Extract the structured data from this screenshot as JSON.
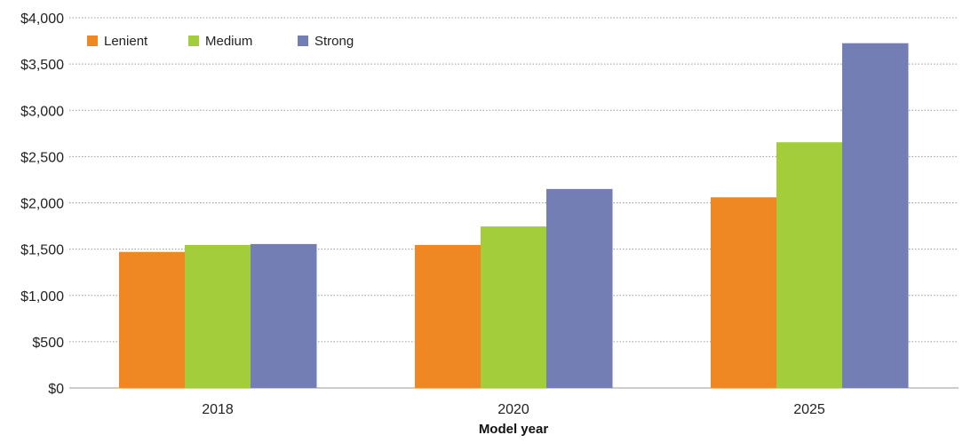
{
  "chart_data": {
    "type": "bar",
    "categories": [
      "2018",
      "2020",
      "2025"
    ],
    "series": [
      {
        "name": "Lenient",
        "color": "#EF8722",
        "values": [
          1470,
          1545,
          2060
        ]
      },
      {
        "name": "Medium",
        "color": "#A3CD3B",
        "values": [
          1545,
          1745,
          2655
        ]
      },
      {
        "name": "Strong",
        "color": "#737EB5",
        "values": [
          1555,
          2150,
          3725
        ]
      }
    ],
    "title": "",
    "xlabel": "Model year",
    "ylabel": "",
    "ylim": [
      0,
      4000
    ],
    "yticks": [
      0,
      500,
      1000,
      1500,
      2000,
      2500,
      3000,
      3500,
      4000
    ],
    "ytick_labels": [
      "$0",
      "$500",
      "$1,000",
      "$1,500",
      "$2,000",
      "$2,500",
      "$3,000",
      "$3,500",
      "$4,000"
    ],
    "grid": true,
    "legend_position": "top-left"
  }
}
